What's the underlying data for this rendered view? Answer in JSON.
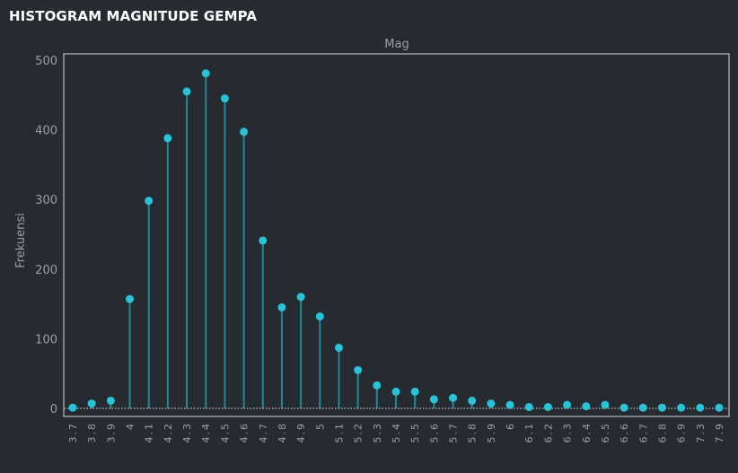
{
  "page": {
    "title": "HISTOGRAM MAGNITUDE GEMPA"
  },
  "colors": {
    "background": "#262b32",
    "panel_border": "#d9dadc",
    "stem": "#1e8a93",
    "marker": "#29c3d8",
    "baseline": "#e8e8e8",
    "tick_text": "#9aa0a6"
  },
  "chart_data": {
    "type": "lollipop",
    "title": "Mag",
    "xlabel": "",
    "ylabel": "Frekuensi",
    "ylim": [
      0,
      500
    ],
    "yticks": [
      0,
      100,
      200,
      300,
      400,
      500
    ],
    "grid": false,
    "legend": "none",
    "categories": [
      "3.7",
      "3.8",
      "3.9",
      "4",
      "4.1",
      "4.2",
      "4.3",
      "4.4",
      "4.5",
      "4.6",
      "4.7",
      "4.8",
      "4.9",
      "5",
      "5.1",
      "5.2",
      "5.3",
      "5.4",
      "5.5",
      "5.6",
      "5.7",
      "5.8",
      "5.9",
      "6",
      "6.1",
      "6.2",
      "6.3",
      "6.4",
      "6.5",
      "6.6",
      "6.7",
      "6.8",
      "6.9",
      "7.3",
      "7.9"
    ],
    "values": [
      1,
      7,
      11,
      157,
      298,
      388,
      455,
      481,
      445,
      397,
      241,
      145,
      160,
      132,
      87,
      55,
      33,
      24,
      24,
      13,
      15,
      11,
      7,
      5,
      2,
      2,
      5,
      3,
      5,
      1,
      1,
      1,
      1,
      1,
      1
    ]
  }
}
